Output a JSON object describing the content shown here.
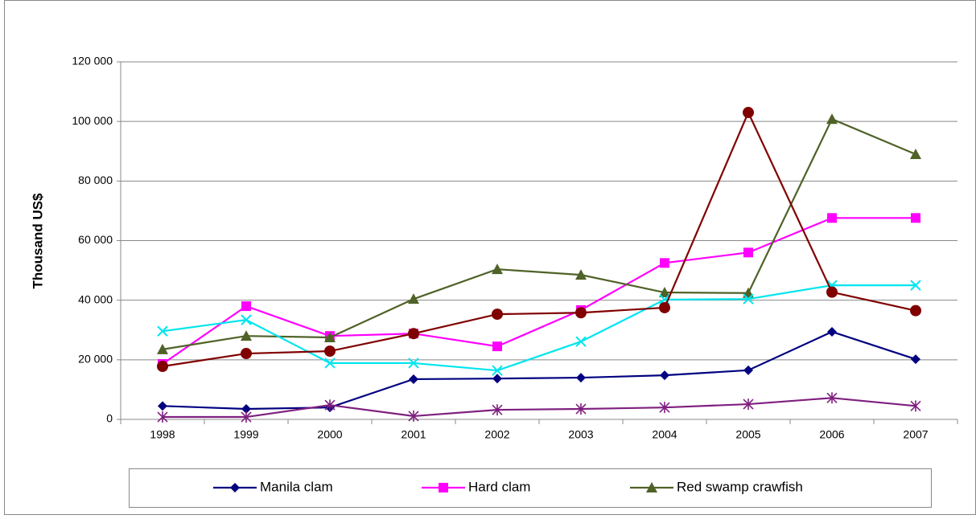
{
  "chart_data": {
    "type": "line",
    "y_label": "Thousand US$",
    "categories": [
      "1998",
      "1999",
      "2000",
      "2001",
      "2002",
      "2003",
      "2004",
      "2005",
      "2006",
      "2007"
    ],
    "ylim": [
      0,
      120000
    ],
    "yticks": [
      0,
      {
        "value": 20000,
        "label": "20 000"
      },
      {
        "value": 40000,
        "label": "40 000"
      },
      {
        "value": 60000,
        "label": "60 000"
      },
      {
        "value": 80000,
        "label": "80 000"
      },
      {
        "value": 100000,
        "label": "100 000"
      },
      {
        "value": 120000,
        "label": "120 000"
      }
    ],
    "grid": true,
    "legend": "bottom",
    "series": [
      {
        "name": "Manila clam",
        "color": "#000080",
        "marker": "diamond",
        "values": [
          4500,
          3500,
          4000,
          13500,
          13700,
          14000,
          14800,
          16500,
          29400,
          20200
        ]
      },
      {
        "name": "Hard clam",
        "color": "#ff00ff",
        "marker": "square",
        "values": [
          18600,
          38000,
          28000,
          28800,
          24500,
          36700,
          52500,
          56000,
          67600,
          67600
        ]
      },
      {
        "name": "Red swamp crawfish",
        "color": "#4f6228",
        "marker": "triangle",
        "values": [
          23500,
          28000,
          27500,
          40400,
          50400,
          48500,
          42600,
          42400,
          100800,
          89000
        ]
      },
      {
        "color": "#00e5ee",
        "marker": "x",
        "values": [
          29600,
          33400,
          18900,
          18900,
          16400,
          26100,
          40200,
          40400,
          45000,
          45000
        ]
      },
      {
        "color": "#800000",
        "marker": "circle",
        "values": [
          17800,
          22100,
          22900,
          28800,
          35300,
          35800,
          37500,
          103000,
          42700,
          36500
        ]
      },
      {
        "color": "#7f1f7f",
        "marker": "asterisk",
        "values": [
          800,
          800,
          4800,
          1100,
          3200,
          3500,
          4000,
          5100,
          7200,
          4500
        ]
      }
    ]
  }
}
